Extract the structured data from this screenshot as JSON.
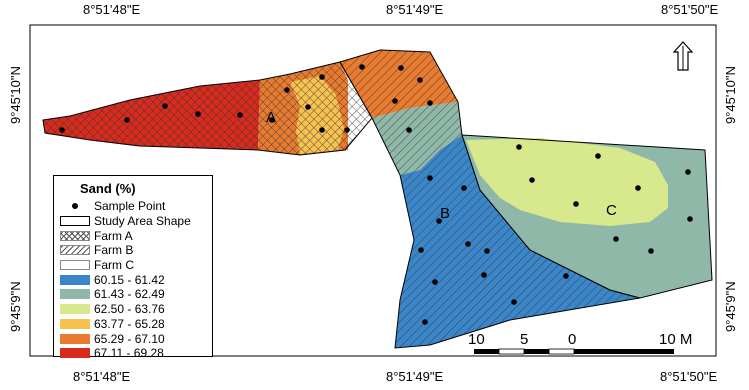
{
  "coordinates": {
    "top": [
      "8°51'48\"E",
      "8°51'49\"E",
      "8°51'50\"E"
    ],
    "bottom": [
      "8°51'48\"E",
      "8°51'49\"E",
      "8°51'50\"E"
    ],
    "left": [
      "9°45'10\"N",
      "9°45'9\"N"
    ],
    "right": [
      "9°45'10\"N",
      "9°45'9\"N"
    ]
  },
  "farm_labels": {
    "a": "A",
    "b": "B",
    "c": "C"
  },
  "legend": {
    "title": "Sand (%)",
    "sample_point": "Sample Point",
    "study_area": "Study Area Shape",
    "farm_a": "Farm A",
    "farm_b": "Farm B",
    "farm_c": "Farm C",
    "classes": [
      {
        "label": "60.15 - 61.42",
        "color": "#3a86c8"
      },
      {
        "label": "61.43 - 62.49",
        "color": "#8fb8a8"
      },
      {
        "label": "62.50 - 63.76",
        "color": "#d8e88c"
      },
      {
        "label": "63.77 - 65.28",
        "color": "#f8c250"
      },
      {
        "label": "65.29 - 67.10",
        "color": "#e87b30"
      },
      {
        "label": "67.11 - 69.28",
        "color": "#d92a1e"
      }
    ]
  },
  "scale_bar": {
    "labels": [
      "10",
      "5",
      "0",
      "10 M"
    ]
  },
  "north_arrow": "north-arrow-icon"
}
